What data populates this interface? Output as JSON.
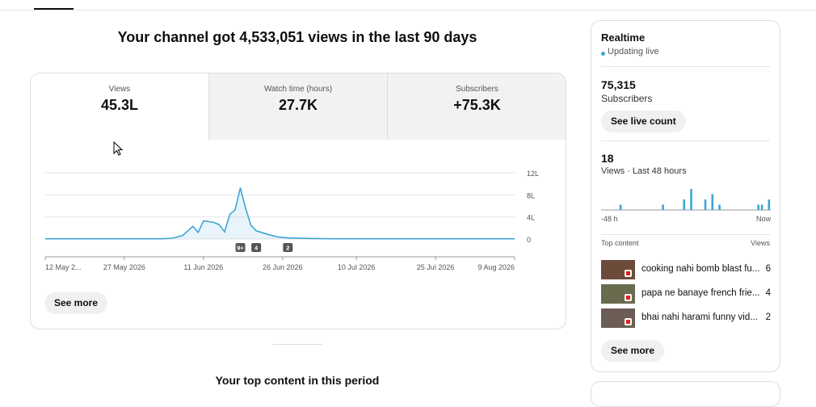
{
  "header": {
    "title": "Your channel got 4,533,051 views in the last 90 days"
  },
  "metrics": [
    {
      "label": "Views",
      "value": "45.3L"
    },
    {
      "label": "Watch time (hours)",
      "value": "27.7K"
    },
    {
      "label": "Subscribers",
      "value": "+75.3K"
    }
  ],
  "chart_data": {
    "type": "line",
    "color": "#3ea6d3",
    "x": [
      "2026-05-12",
      "2026-05-16",
      "2026-05-20",
      "2026-05-24",
      "2026-05-28",
      "2026-06-01",
      "2026-06-03",
      "2026-06-05",
      "2026-06-07",
      "2026-06-09",
      "2026-06-10",
      "2026-06-11",
      "2026-06-13",
      "2026-06-14",
      "2026-06-15",
      "2026-06-16",
      "2026-06-17",
      "2026-06-18",
      "2026-06-19",
      "2026-06-20",
      "2026-06-21",
      "2026-06-23",
      "2026-06-25",
      "2026-06-27",
      "2026-07-01",
      "2026-07-06",
      "2026-07-11",
      "2026-07-16",
      "2026-07-21",
      "2026-07-26",
      "2026-07-31",
      "2026-08-05",
      "2026-08-09"
    ],
    "values": [
      0.05,
      0.05,
      0.05,
      0.05,
      0.05,
      0.05,
      0.05,
      0.15,
      0.6,
      2.3,
      1.2,
      3.3,
      3.0,
      2.6,
      1.3,
      4.5,
      5.3,
      9.3,
      5.5,
      2.5,
      1.5,
      0.9,
      0.4,
      0.2,
      0.1,
      0.05,
      0.05,
      0.05,
      0.05,
      0.05,
      0.05,
      0.05,
      0.05
    ],
    "xlim": [
      "2026-05-12",
      "2026-08-09"
    ],
    "xticks": [
      {
        "value": "2026-05-12",
        "label": "12 May 2..."
      },
      {
        "value": "2026-05-27",
        "label": "27 May 2026"
      },
      {
        "value": "2026-06-11",
        "label": "11 Jun 2026"
      },
      {
        "value": "2026-06-26",
        "label": "26 Jun 2026"
      },
      {
        "value": "2026-07-10",
        "label": "10 Jul 2026"
      },
      {
        "value": "2026-07-25",
        "label": "25 Jul 2026"
      },
      {
        "value": "2026-08-09",
        "label": "9 Aug 2026"
      }
    ],
    "ylim": [
      0,
      12
    ],
    "yticks": [
      0,
      {
        "value": 4,
        "label": "4L"
      },
      {
        "value": 8,
        "label": "8L"
      },
      {
        "value": 12,
        "label": "12L"
      }
    ],
    "grid": true,
    "annotations": [
      {
        "x": "2026-06-18",
        "label": "9+"
      },
      {
        "x": "2026-06-21",
        "label": "4"
      },
      {
        "x": "2026-06-27",
        "label": "2"
      }
    ]
  },
  "see_more": "See more",
  "top_content_heading": "Your top content in this period",
  "realtime": {
    "title": "Realtime",
    "status": "Updating live",
    "subscribers": {
      "value": "75,315",
      "label": "Subscribers",
      "button": "See live count"
    },
    "views": {
      "value": "18",
      "label": "Views · Last 48 hours"
    },
    "hourly_chart": {
      "type": "bar",
      "color": "#3ea6d3",
      "values": [
        0,
        0,
        0,
        0,
        0,
        1,
        0,
        0,
        0,
        0,
        0,
        0,
        0,
        0,
        0,
        0,
        0,
        1,
        0,
        0,
        0,
        0,
        0,
        2,
        0,
        4,
        0,
        0,
        0,
        2,
        0,
        3,
        0,
        1,
        0,
        0,
        0,
        0,
        0,
        0,
        0,
        0,
        0,
        0,
        1,
        1,
        0,
        2
      ],
      "start_label": "-48 h",
      "end_label": "Now"
    },
    "top_content": {
      "label": "Top content",
      "views_label": "Views",
      "items": [
        {
          "title": "cooking nahi bomb blast fu...",
          "views": "6"
        },
        {
          "title": "papa ne banaye french frie...",
          "views": "4"
        },
        {
          "title": "bhai nahi harami funny vid...",
          "views": "2"
        }
      ]
    },
    "see_more": "See more"
  }
}
